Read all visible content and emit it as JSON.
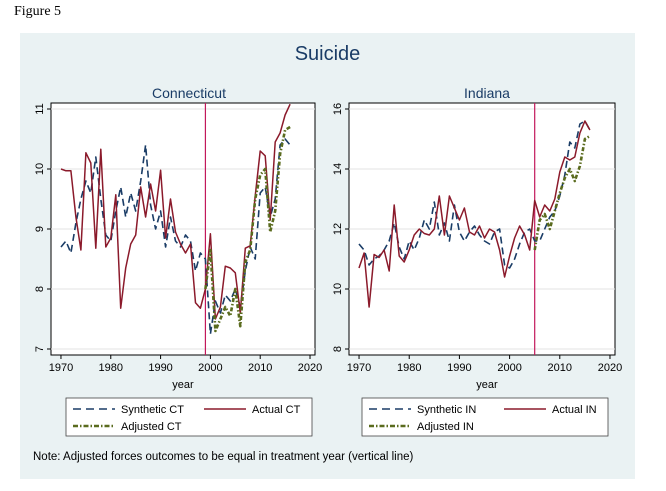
{
  "figure_label": "Figure 5",
  "main_title": "Suicide",
  "note": "Note: Adjusted forces outcomes to be equal in treatment year (vertical line)",
  "colors": {
    "synthetic": "#1a3c66",
    "actual": "#8b1a2b",
    "adjusted": "#5a6b1e",
    "treatment_line": "#c2185b",
    "panel_bg": "#eaf2f3",
    "title": "#1a3c66"
  },
  "chart_data": [
    {
      "type": "line",
      "title": "Connecticut",
      "xlabel": "year",
      "ylabel": "",
      "xlim": [
        1968,
        2021
      ],
      "ylim": [
        6.9,
        11.1
      ],
      "xticks": [
        1970,
        1980,
        1990,
        2000,
        2010,
        2020
      ],
      "yticks": [
        7,
        8,
        9,
        10,
        11
      ],
      "treatment_year": 1999,
      "legend": {
        "placement": "bottom",
        "synthetic_label": "Synthetic CT",
        "actual_label": "Actual CT",
        "adjusted_label": "Adjusted CT"
      },
      "series": [
        {
          "name": "Synthetic CT",
          "key": "synthetic",
          "x": [
            1970,
            1971,
            1972,
            1973,
            1974,
            1975,
            1976,
            1977,
            1978,
            1979,
            1980,
            1981,
            1982,
            1983,
            1984,
            1985,
            1986,
            1987,
            1988,
            1989,
            1990,
            1991,
            1992,
            1993,
            1994,
            1995,
            1996,
            1997,
            1998,
            1999,
            2000,
            2001,
            2002,
            2003,
            2004,
            2005,
            2006,
            2007,
            2008,
            2009,
            2010,
            2011,
            2012,
            2013,
            2014,
            2015,
            2016
          ],
          "y": [
            8.7,
            8.8,
            8.6,
            9.1,
            9.5,
            9.8,
            9.6,
            10.2,
            9.5,
            8.9,
            8.8,
            9.3,
            9.7,
            9.2,
            9.6,
            9.3,
            9.8,
            10.4,
            9.4,
            9.0,
            9.3,
            8.7,
            9.2,
            8.8,
            8.7,
            8.9,
            8.8,
            8.3,
            8.6,
            8.5,
            7.25,
            7.8,
            7.6,
            7.9,
            7.8,
            8.0,
            7.7,
            8.3,
            8.7,
            8.5,
            9.6,
            9.7,
            9.2,
            9.5,
            10.4,
            10.5,
            10.4
          ]
        },
        {
          "name": "Actual CT",
          "key": "actual",
          "x": [
            1970,
            1971,
            1972,
            1973,
            1974,
            1975,
            1976,
            1977,
            1978,
            1979,
            1980,
            1981,
            1982,
            1983,
            1984,
            1985,
            1986,
            1987,
            1988,
            1989,
            1990,
            1991,
            1992,
            1993,
            1994,
            1995,
            1996,
            1997,
            1998,
            1999,
            2000,
            2001,
            2002,
            2003,
            2004,
            2005,
            2006,
            2007,
            2008,
            2009,
            2010,
            2011,
            2012,
            2013,
            2014,
            2015,
            2016
          ],
          "y": [
            10.0,
            9.97,
            9.97,
            9.2,
            8.65,
            10.27,
            10.1,
            8.68,
            10.33,
            8.7,
            8.85,
            9.57,
            7.68,
            8.35,
            8.75,
            8.9,
            9.7,
            9.2,
            9.75,
            9.3,
            9.98,
            8.85,
            9.5,
            8.95,
            8.75,
            8.6,
            8.75,
            7.77,
            7.68,
            8.0,
            8.92,
            7.5,
            7.7,
            8.38,
            8.35,
            8.27,
            7.6,
            8.68,
            8.72,
            9.55,
            10.3,
            10.22,
            9.15,
            10.45,
            10.6,
            10.9,
            11.08
          ]
        },
        {
          "name": "Adjusted CT",
          "key": "adjusted",
          "x": [
            1999,
            2000,
            2001,
            2002,
            2003,
            2004,
            2005,
            2006,
            2007,
            2008,
            2009,
            2010,
            2011,
            2012,
            2013,
            2014,
            2015,
            2016
          ],
          "y": [
            8.0,
            8.65,
            7.3,
            7.5,
            7.7,
            7.55,
            8.0,
            7.38,
            8.45,
            8.65,
            9.5,
            9.9,
            10.0,
            8.95,
            9.3,
            10.25,
            10.65,
            10.7
          ]
        }
      ]
    },
    {
      "type": "line",
      "title": "Indiana",
      "xlabel": "year",
      "ylabel": "",
      "xlim": [
        1968,
        2021
      ],
      "ylim": [
        7.8,
        16.2
      ],
      "xticks": [
        1970,
        1980,
        1990,
        2000,
        2010,
        2020
      ],
      "yticks": [
        8,
        10,
        12,
        14,
        16
      ],
      "treatment_year": 2005,
      "legend": {
        "placement": "bottom",
        "synthetic_label": "Synthetic IN",
        "actual_label": "Actual IN",
        "adjusted_label": "Adjusted IN"
      },
      "series": [
        {
          "name": "Synthetic IN",
          "key": "synthetic",
          "x": [
            1970,
            1971,
            1972,
            1973,
            1974,
            1975,
            1976,
            1977,
            1978,
            1979,
            1980,
            1981,
            1982,
            1983,
            1984,
            1985,
            1986,
            1987,
            1988,
            1989,
            1990,
            1991,
            1992,
            1993,
            1994,
            1995,
            1996,
            1997,
            1998,
            1999,
            2000,
            2001,
            2002,
            2003,
            2004,
            2005,
            2006,
            2007,
            2008,
            2009,
            2010,
            2011,
            2012,
            2013,
            2014,
            2015,
            2016
          ],
          "y": [
            11.5,
            11.3,
            10.8,
            11.0,
            11.1,
            11.3,
            11.6,
            12.2,
            11.4,
            11.0,
            11.6,
            11.3,
            11.7,
            12.3,
            12.0,
            12.9,
            11.8,
            12.2,
            11.6,
            12.8,
            11.9,
            11.6,
            11.9,
            12.1,
            11.8,
            11.6,
            11.5,
            11.9,
            12.0,
            10.8,
            10.7,
            11.0,
            11.5,
            11.9,
            12.0,
            11.6,
            11.6,
            12.0,
            12.4,
            12.6,
            13.1,
            13.8,
            14.9,
            14.7,
            15.5,
            15.6,
            15.3
          ]
        },
        {
          "name": "Actual IN",
          "key": "actual",
          "x": [
            1970,
            1971,
            1972,
            1973,
            1974,
            1975,
            1976,
            1977,
            1978,
            1979,
            1980,
            1981,
            1982,
            1983,
            1984,
            1985,
            1986,
            1987,
            1988,
            1989,
            1990,
            1991,
            1992,
            1993,
            1994,
            1995,
            1996,
            1997,
            1998,
            1999,
            2000,
            2001,
            2002,
            2003,
            2004,
            2005,
            2006,
            2007,
            2008,
            2009,
            2010,
            2011,
            2012,
            2013,
            2014,
            2015,
            2016
          ],
          "y": [
            10.7,
            11.2,
            9.4,
            11.15,
            11.05,
            11.3,
            10.6,
            12.8,
            11.1,
            10.9,
            11.3,
            11.8,
            12.0,
            11.85,
            11.8,
            12.0,
            13.1,
            11.8,
            13.1,
            12.7,
            12.3,
            12.7,
            11.9,
            11.8,
            12.1,
            11.7,
            12.0,
            11.9,
            11.3,
            10.4,
            11.1,
            11.7,
            12.1,
            11.8,
            11.3,
            12.95,
            12.4,
            12.8,
            12.6,
            13.0,
            13.9,
            14.4,
            14.3,
            14.4,
            15.2,
            15.6,
            15.3
          ]
        },
        {
          "name": "Adjusted IN",
          "key": "adjusted",
          "x": [
            2005,
            2006,
            2007,
            2008,
            2009,
            2010,
            2011,
            2012,
            2013,
            2014,
            2015,
            2016
          ],
          "y": [
            11.3,
            12.3,
            12.5,
            12.0,
            12.6,
            13.2,
            13.7,
            14.0,
            13.6,
            14.1,
            15.0,
            15.1
          ]
        }
      ]
    }
  ]
}
